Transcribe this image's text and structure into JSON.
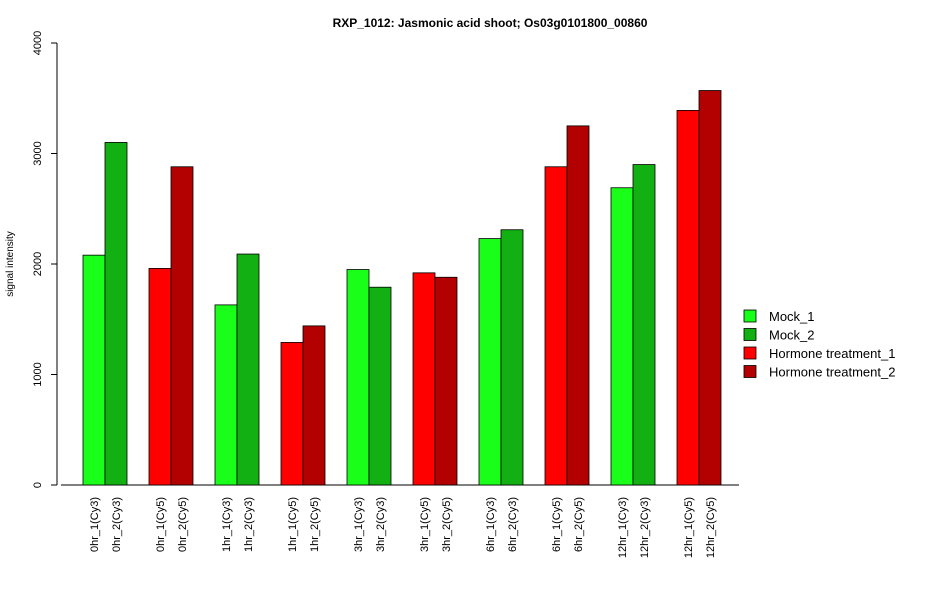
{
  "chart_data": {
    "type": "bar",
    "title": "RXP_1012: Jasmonic acid shoot; Os03g0101800_00860",
    "xlabel": "",
    "ylabel": "signal intensity",
    "ylim": [
      0,
      4000
    ],
    "yticks": [
      0,
      1000,
      2000,
      3000,
      4000
    ],
    "grid": false,
    "legend_position": "right",
    "series": [
      {
        "name": "Mock_1",
        "color": "#1aff1a"
      },
      {
        "name": "Mock_2",
        "color": "#12b012"
      },
      {
        "name": "Hormone treatment_1",
        "color": "#ff0000"
      },
      {
        "name": "Hormone treatment_2",
        "color": "#b30000"
      }
    ],
    "groups": [
      {
        "bars": [
          {
            "label": "0hr_1(Cy3)",
            "value": 2080,
            "series": "Mock_1"
          },
          {
            "label": "0hr_2(Cy3)",
            "value": 3100,
            "series": "Mock_2"
          }
        ]
      },
      {
        "bars": [
          {
            "label": "0hr_1(Cy5)",
            "value": 1960,
            "series": "Hormone treatment_1"
          },
          {
            "label": "0hr_2(Cy5)",
            "value": 2880,
            "series": "Hormone treatment_2"
          }
        ]
      },
      {
        "bars": [
          {
            "label": "1hr_1(Cy3)",
            "value": 1630,
            "series": "Mock_1"
          },
          {
            "label": "1hr_2(Cy3)",
            "value": 2090,
            "series": "Mock_2"
          }
        ]
      },
      {
        "bars": [
          {
            "label": "1hr_1(Cy5)",
            "value": 1290,
            "series": "Hormone treatment_1"
          },
          {
            "label": "1hr_2(Cy5)",
            "value": 1440,
            "series": "Hormone treatment_2"
          }
        ]
      },
      {
        "bars": [
          {
            "label": "3hr_1(Cy3)",
            "value": 1950,
            "series": "Mock_1"
          },
          {
            "label": "3hr_2(Cy3)",
            "value": 1790,
            "series": "Mock_2"
          }
        ]
      },
      {
        "bars": [
          {
            "label": "3hr_1(Cy5)",
            "value": 1920,
            "series": "Hormone treatment_1"
          },
          {
            "label": "3hr_2(Cy5)",
            "value": 1880,
            "series": "Hormone treatment_2"
          }
        ]
      },
      {
        "bars": [
          {
            "label": "6hr_1(Cy3)",
            "value": 2230,
            "series": "Mock_1"
          },
          {
            "label": "6hr_2(Cy3)",
            "value": 2310,
            "series": "Mock_2"
          }
        ]
      },
      {
        "bars": [
          {
            "label": "6hr_1(Cy5)",
            "value": 2880,
            "series": "Hormone treatment_1"
          },
          {
            "label": "6hr_2(Cy5)",
            "value": 3250,
            "series": "Hormone treatment_2"
          }
        ]
      },
      {
        "bars": [
          {
            "label": "12hr_1(Cy3)",
            "value": 2690,
            "series": "Mock_1"
          },
          {
            "label": "12hr_2(Cy3)",
            "value": 2900,
            "series": "Mock_2"
          }
        ]
      },
      {
        "bars": [
          {
            "label": "12hr_1(Cy5)",
            "value": 3390,
            "series": "Hormone treatment_1"
          },
          {
            "label": "12hr_2(Cy5)",
            "value": 3570,
            "series": "Hormone treatment_2"
          }
        ]
      }
    ]
  }
}
